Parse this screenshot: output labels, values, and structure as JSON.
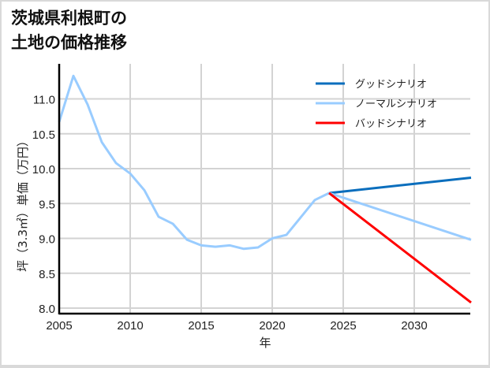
{
  "title": "茨城県利根町の\n土地の価格推移",
  "chart_data": {
    "type": "line",
    "title": "茨城県利根町の土地の価格推移",
    "xlabel": "年",
    "ylabel": "坪（3.3㎡）単価（万円）",
    "xlim": [
      2005,
      2034
    ],
    "ylim": [
      7.95,
      11.5
    ],
    "xticks": [
      2005,
      2010,
      2015,
      2020,
      2025,
      2030
    ],
    "yticks": [
      8.0,
      8.5,
      9.0,
      9.5,
      10.0,
      10.5,
      11.0
    ],
    "grid": true,
    "legend_position": "upper right",
    "series": [
      {
        "name": "グッドシナリオ",
        "color": "#0a6ebd",
        "x": [
          2024,
          2034
        ],
        "values": [
          9.65,
          9.87
        ]
      },
      {
        "name": "ノーマルシナリオ",
        "color": "#99ccff",
        "x": [
          2005,
          2006,
          2007,
          2008,
          2009,
          2010,
          2011,
          2012,
          2013,
          2014,
          2015,
          2016,
          2017,
          2018,
          2019,
          2020,
          2021,
          2022,
          2023,
          2024,
          2034
        ],
        "values": [
          10.67,
          11.33,
          10.92,
          10.38,
          10.08,
          9.93,
          9.69,
          9.31,
          9.21,
          8.98,
          8.9,
          8.88,
          8.9,
          8.85,
          8.87,
          9.0,
          9.05,
          9.3,
          9.55,
          9.65,
          8.98
        ]
      },
      {
        "name": "バッドシナリオ",
        "color": "#ff0000",
        "x": [
          2024,
          2034
        ],
        "values": [
          9.65,
          8.08
        ]
      }
    ]
  }
}
